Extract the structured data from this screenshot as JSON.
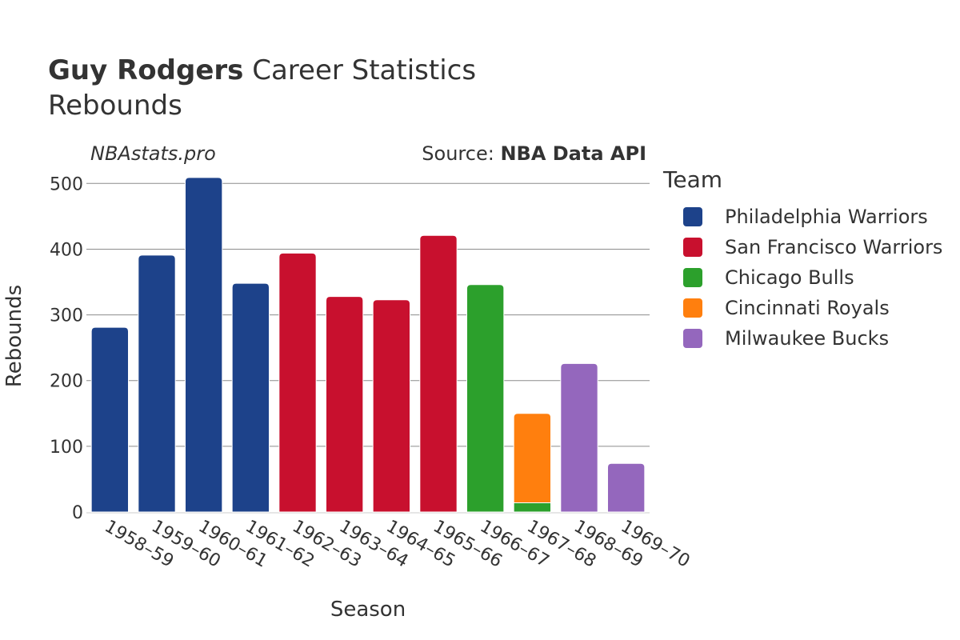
{
  "header": {
    "player_name": "Guy Rodgers",
    "title_suffix": "Career Statistics",
    "stat": "Rebounds",
    "watermark": "NBAstats.pro",
    "source_prefix": "Source:",
    "source_name": "NBA Data API"
  },
  "legend": {
    "title": "Team",
    "items": [
      {
        "label": "Philadelphia Warriors",
        "color": "#1d428a"
      },
      {
        "label": "San Francisco Warriors",
        "color": "#c8102e"
      },
      {
        "label": "Chicago Bulls",
        "color": "#2ca02c"
      },
      {
        "label": "Cincinnati Royals",
        "color": "#ff7f0e"
      },
      {
        "label": "Milwaukee Bucks",
        "color": "#9467bd"
      }
    ]
  },
  "chart_data": {
    "type": "bar",
    "stacked": true,
    "xlabel": "Season",
    "ylabel": "Rebounds",
    "ylim": [
      0,
      520
    ],
    "yticks": [
      0,
      100,
      200,
      300,
      400,
      500
    ],
    "grid": true,
    "legend_position": "right",
    "categories": [
      "1958–59",
      "1959–60",
      "1960–61",
      "1961–62",
      "1962–63",
      "1963–64",
      "1964–65",
      "1965–66",
      "1966–67",
      "1967–68",
      "1968–69",
      "1969–70"
    ],
    "series": [
      {
        "name": "Philadelphia Warriors",
        "color": "#1d428a",
        "values": [
          281,
          391,
          509,
          348,
          0,
          0,
          0,
          0,
          0,
          0,
          0,
          0
        ]
      },
      {
        "name": "San Francisco Warriors",
        "color": "#c8102e",
        "values": [
          0,
          0,
          0,
          0,
          394,
          328,
          323,
          421,
          0,
          0,
          0,
          0
        ]
      },
      {
        "name": "Chicago Bulls",
        "color": "#2ca02c",
        "values": [
          0,
          0,
          0,
          0,
          0,
          0,
          0,
          0,
          346,
          14,
          0,
          0
        ]
      },
      {
        "name": "Cincinnati Royals",
        "color": "#ff7f0e",
        "values": [
          0,
          0,
          0,
          0,
          0,
          0,
          0,
          0,
          0,
          136,
          0,
          0
        ]
      },
      {
        "name": "Milwaukee Bucks",
        "color": "#9467bd",
        "values": [
          0,
          0,
          0,
          0,
          0,
          0,
          0,
          0,
          0,
          0,
          226,
          74
        ]
      }
    ]
  }
}
